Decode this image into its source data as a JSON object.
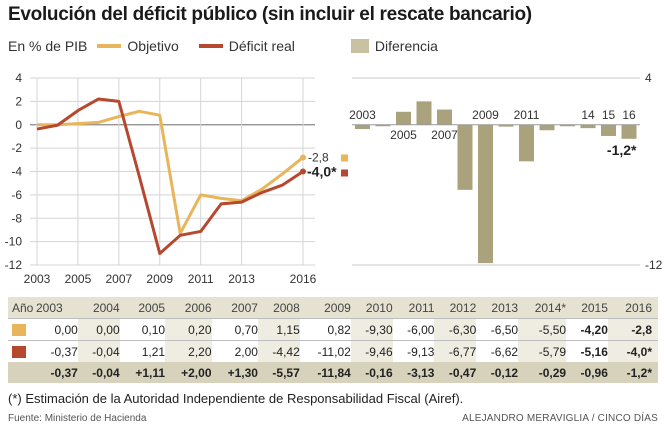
{
  "title": "Evolución del déficit público (sin incluir el rescate bancario)",
  "legend": {
    "unit": "En % de PIB",
    "objetivo": "Objetivo",
    "deficit_real": "Déficit real",
    "diferencia": "Diferencia"
  },
  "colors": {
    "objetivo": "#e8b55a",
    "deficit_real": "#b5482f",
    "diferencia": "#aaa27c",
    "table_bg": "#e6e2d2",
    "table_sum_bg": "#d6d2bb"
  },
  "chart_data": [
    {
      "type": "line",
      "x": [
        2003,
        2004,
        2005,
        2006,
        2007,
        2008,
        2009,
        2010,
        2011,
        2012,
        2013,
        2014,
        2015,
        2016
      ],
      "series": [
        {
          "name": "Objetivo",
          "values": [
            0.0,
            0.0,
            0.1,
            0.2,
            0.7,
            1.15,
            0.82,
            -9.3,
            -6.0,
            -6.3,
            -6.5,
            -5.5,
            -4.2,
            -2.8
          ]
        },
        {
          "name": "Déficit real",
          "values": [
            -0.37,
            -0.04,
            1.21,
            2.2,
            2.0,
            -4.42,
            -11.02,
            -9.46,
            -9.13,
            -6.77,
            -6.62,
            -5.79,
            -5.16,
            -4.0
          ]
        }
      ],
      "ylim": [
        -12,
        4
      ],
      "yticks": [
        "4",
        "2",
        "0",
        "-2",
        "-4",
        "-6",
        "-8",
        "-10",
        "-12"
      ],
      "xticks": [
        "2003",
        "2005",
        "2007",
        "2009",
        "2011",
        "2013",
        "2016"
      ],
      "annotations": [
        "-2,8",
        "-4,0*"
      ]
    },
    {
      "type": "bar",
      "categories": [
        2003,
        2004,
        2005,
        2006,
        2007,
        2008,
        2009,
        2010,
        2011,
        2012,
        2013,
        2014,
        2015,
        2016
      ],
      "series": [
        {
          "name": "Diferencia",
          "values": [
            -0.37,
            -0.04,
            1.11,
            2.0,
            1.3,
            -5.57,
            -11.84,
            -0.16,
            -3.13,
            -0.47,
            -0.12,
            -0.29,
            -0.96,
            -1.2
          ]
        }
      ],
      "ylim": [
        -12,
        4
      ],
      "yticks": [
        "4",
        "-12"
      ],
      "category_labels": [
        "2003",
        "2005",
        "2007",
        "2009",
        "2011",
        "14",
        "15",
        "16"
      ],
      "annotations": [
        "-1,2*"
      ]
    }
  ],
  "table": {
    "header_label": "Año",
    "years": [
      "2003",
      "2004",
      "2005",
      "2006",
      "2007",
      "2008",
      "2009",
      "2010",
      "2011",
      "2012",
      "2013",
      "2014*",
      "2015",
      "2016"
    ],
    "rows": [
      {
        "values": [
          "0,00",
          "0,00",
          "0,10",
          "0,20",
          "0,70",
          "1,15",
          "0,82",
          "-9,30",
          "-6,00",
          "-6,30",
          "-6,50",
          "-5,50",
          "-4,20",
          "-2,8"
        ]
      },
      {
        "values": [
          "-0,37",
          "-0,04",
          "1,21",
          "2,20",
          "2,00",
          "-4,42",
          "-11,02",
          "-9,46",
          "-9,13",
          "-6,77",
          "-6,62",
          "-5,79",
          "-5,16",
          "-4,0*"
        ]
      },
      {
        "values": [
          "-0,37",
          "-0,04",
          "+1,11",
          "+2,00",
          "+1,30",
          "-5,57",
          "-11,84",
          "-0,16",
          "-3,13",
          "-0,47",
          "-0,12",
          "-0,29",
          "-0,96",
          "-1,2*"
        ]
      }
    ]
  },
  "footnote": "(*) Estimación de la Autoridad Independiente de Responsabilidad Fiscal (Airef).",
  "source": "Fuente: Ministerio de Hacienda",
  "credit": "ALEJANDRO MERAVIGLIA / CINCO DÍAS"
}
